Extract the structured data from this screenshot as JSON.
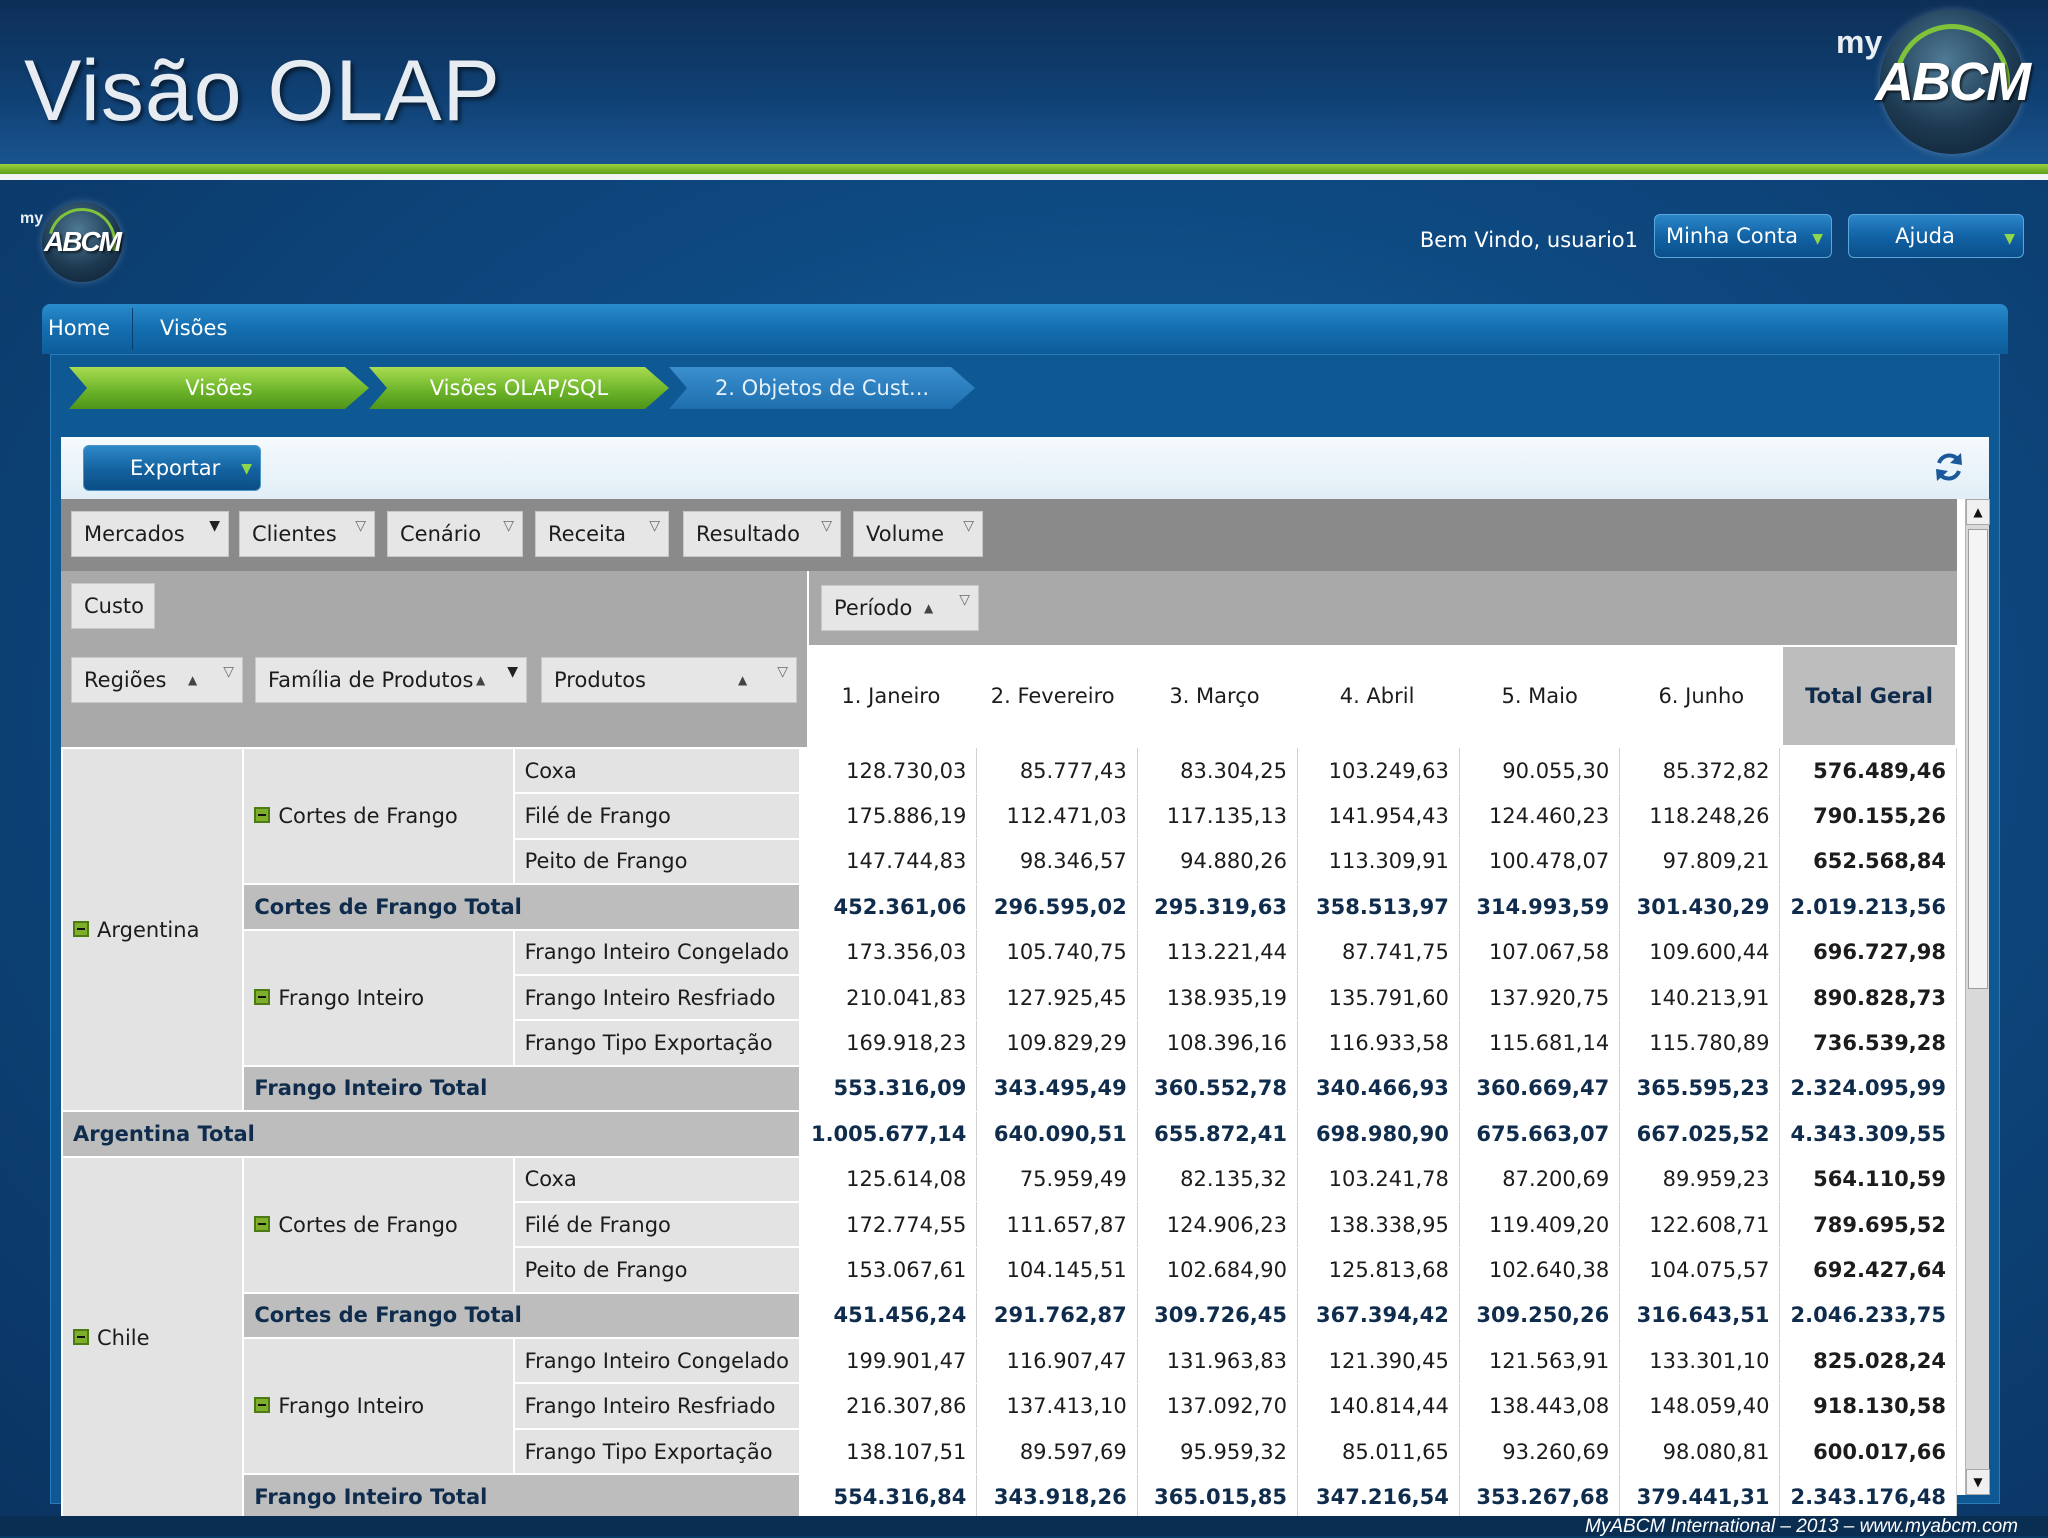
{
  "slide": {
    "title": "Visão OLAP",
    "logo_my": "my",
    "logo_text": "ABCM",
    "footer": "MyABCM International – 2013 – www.myabcm.com"
  },
  "app": {
    "logo_my": "my",
    "logo_text": "ABCM",
    "welcome": "Bem Vindo, usuario1",
    "account_button": "Minha Conta",
    "help_button": "Ajuda",
    "nav": [
      "Home",
      "Visões"
    ],
    "breadcrumbs": [
      "Visões",
      "Visões OLAP/SQL",
      "2. Objetos de Cust..."
    ],
    "export_button": "Exportar",
    "icons": {
      "refresh": "refresh-icon",
      "filter": "filter-icon",
      "sort_asc": "sort-ascending-icon",
      "expand": "collapse-minus-icon"
    },
    "colors": {
      "accent_green": "#7fc33a",
      "header_blue": "#0f3f72",
      "subtotal_text": "#0f2c4d"
    }
  },
  "pivot": {
    "filter_fields": [
      "Mercados",
      "Clientes",
      "Cenário",
      "Receita",
      "Resultado",
      "Volume"
    ],
    "data_field": "Custo",
    "column_field": "Período",
    "row_fields": [
      "Regiões",
      "Família de Produtos",
      "Produtos"
    ],
    "columns": [
      "1. Janeiro",
      "2. Fevereiro",
      "3. Março",
      "4. Abril",
      "5. Maio",
      "6. Junho",
      "Total Geral"
    ],
    "rows": [
      {
        "region": "Argentina",
        "family": "Cortes de Frango",
        "product": "Coxa",
        "values": [
          "128.730,03",
          "85.777,43",
          "83.304,25",
          "103.249,63",
          "90.055,30",
          "85.372,82",
          "576.489,46"
        ]
      },
      {
        "product": "Filé de Frango",
        "values": [
          "175.886,19",
          "112.471,03",
          "117.135,13",
          "141.954,43",
          "124.460,23",
          "118.248,26",
          "790.155,26"
        ]
      },
      {
        "product": "Peito de Frango",
        "values": [
          "147.744,83",
          "98.346,57",
          "94.880,26",
          "113.309,91",
          "100.478,07",
          "97.809,21",
          "652.568,84"
        ]
      },
      {
        "subtotal": "Cortes de Frango Total",
        "values": [
          "452.361,06",
          "296.595,02",
          "295.319,63",
          "358.513,97",
          "314.993,59",
          "301.430,29",
          "2.019.213,56"
        ]
      },
      {
        "family": "Frango Inteiro",
        "product": "Frango Inteiro Congelado",
        "values": [
          "173.356,03",
          "105.740,75",
          "113.221,44",
          "87.741,75",
          "107.067,58",
          "109.600,44",
          "696.727,98"
        ]
      },
      {
        "product": "Frango Inteiro Resfriado",
        "values": [
          "210.041,83",
          "127.925,45",
          "138.935,19",
          "135.791,60",
          "137.920,75",
          "140.213,91",
          "890.828,73"
        ]
      },
      {
        "product": "Frango Tipo Exportação",
        "values": [
          "169.918,23",
          "109.829,29",
          "108.396,16",
          "116.933,58",
          "115.681,14",
          "115.780,89",
          "736.539,28"
        ]
      },
      {
        "subtotal": "Frango Inteiro Total",
        "values": [
          "553.316,09",
          "343.495,49",
          "360.552,78",
          "340.466,93",
          "360.669,47",
          "365.595,23",
          "2.324.095,99"
        ]
      },
      {
        "region_total": "Argentina Total",
        "values": [
          "1.005.677,14",
          "640.090,51",
          "655.872,41",
          "698.980,90",
          "675.663,07",
          "667.025,52",
          "4.343.309,55"
        ]
      },
      {
        "region": "Chile",
        "family": "Cortes de Frango",
        "product": "Coxa",
        "values": [
          "125.614,08",
          "75.959,49",
          "82.135,32",
          "103.241,78",
          "87.200,69",
          "89.959,23",
          "564.110,59"
        ]
      },
      {
        "product": "Filé de Frango",
        "values": [
          "172.774,55",
          "111.657,87",
          "124.906,23",
          "138.338,95",
          "119.409,20",
          "122.608,71",
          "789.695,52"
        ]
      },
      {
        "product": "Peito de Frango",
        "values": [
          "153.067,61",
          "104.145,51",
          "102.684,90",
          "125.813,68",
          "102.640,38",
          "104.075,57",
          "692.427,64"
        ]
      },
      {
        "subtotal": "Cortes de Frango Total",
        "values": [
          "451.456,24",
          "291.762,87",
          "309.726,45",
          "367.394,42",
          "309.250,26",
          "316.643,51",
          "2.046.233,75"
        ]
      },
      {
        "family": "Frango Inteiro",
        "product": "Frango Inteiro Congelado",
        "values": [
          "199.901,47",
          "116.907,47",
          "131.963,83",
          "121.390,45",
          "121.563,91",
          "133.301,10",
          "825.028,24"
        ]
      },
      {
        "product": "Frango Inteiro Resfriado",
        "values": [
          "216.307,86",
          "137.413,10",
          "137.092,70",
          "140.814,44",
          "138.443,08",
          "148.059,40",
          "918.130,58"
        ]
      },
      {
        "product": "Frango Tipo Exportação",
        "values": [
          "138.107,51",
          "89.597,69",
          "95.959,32",
          "85.011,65",
          "93.260,69",
          "98.080,81",
          "600.017,66"
        ]
      },
      {
        "subtotal": "Frango Inteiro Total",
        "values": [
          "554.316,84",
          "343.918,26",
          "365.015,85",
          "347.216,54",
          "353.267,68",
          "379.441,31",
          "2.343.176,48"
        ]
      }
    ]
  }
}
